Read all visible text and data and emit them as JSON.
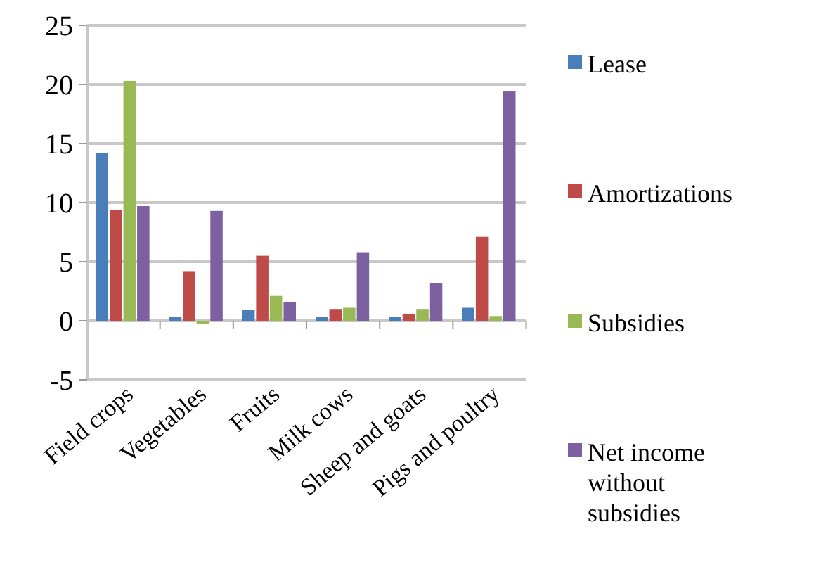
{
  "chart_data": {
    "type": "bar",
    "categories": [
      "Field crops",
      "Vegetables",
      "Fruits",
      "Milk cows",
      "Sheep and goats",
      "Pigs and poultry"
    ],
    "series": [
      {
        "name": "Lease",
        "color": "#4a7ebb",
        "values": [
          14.2,
          0.3,
          0.9,
          0.3,
          0.3,
          1.1
        ]
      },
      {
        "name": "Amortizations",
        "color": "#be4b48",
        "values": [
          9.4,
          4.2,
          5.5,
          1.0,
          0.6,
          7.1
        ]
      },
      {
        "name": "Subsidies",
        "color": "#98b954",
        "values": [
          20.3,
          -0.3,
          2.1,
          1.1,
          1.0,
          0.4
        ]
      },
      {
        "name": "Net income without subsidies",
        "color": "#7d60a0",
        "values": [
          9.7,
          9.3,
          1.6,
          5.8,
          3.2,
          19.4
        ]
      }
    ],
    "ylim": [
      -5,
      25
    ],
    "yticks": [
      -5,
      0,
      5,
      10,
      15,
      20,
      25
    ],
    "grid": "y",
    "legend": "right"
  }
}
